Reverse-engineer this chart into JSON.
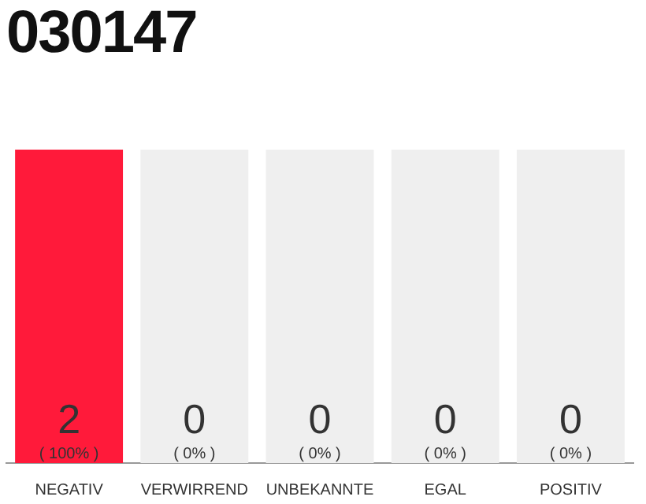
{
  "chart_data": {
    "type": "bar",
    "title": "030147",
    "stacked": true,
    "categories": [
      "NEGATIV",
      "VERWIRREND",
      "UNBEKANNTE",
      "EGAL",
      "POSITIV"
    ],
    "series": [
      {
        "color": "#ff1a3a",
        "values": [
          2,
          0,
          0,
          0,
          0
        ],
        "value_labels": [
          "2\n( 100% )",
          null,
          null,
          null,
          null
        ]
      },
      {
        "color": "#efefef",
        "values": [
          0,
          2,
          2,
          2,
          2
        ]
      }
    ],
    "annotations": [
      {
        "text": "0\n( 0% )",
        "x": "VERWIRREND",
        "y": 0
      },
      {
        "text": "0\n( 0% )",
        "x": "UNBEKANNTE",
        "y": 0
      },
      {
        "text": "0\n( 0% )",
        "x": "EGAL",
        "y": 0
      },
      {
        "text": "0\n( 0% )",
        "x": "POSITIV",
        "y": 0
      }
    ],
    "grid": false,
    "legend": false,
    "tick_labels": "x"
  }
}
